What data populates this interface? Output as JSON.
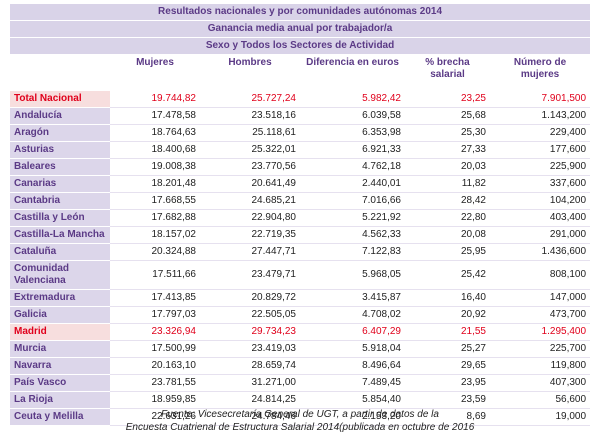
{
  "header": {
    "titles": [
      "Resultados nacionales y por comunidades  autónomas 2014",
      "Ganancia media anual por trabajador/a",
      "Sexo y Todos los Sectores de Actividad"
    ]
  },
  "table": {
    "columns": [
      "Mujeres",
      "Hombres",
      "Diferencia en euros",
      "% brecha salarial",
      "Número de mujeres"
    ],
    "rows": [
      [
        "Total Nacional",
        "19.744,82",
        "25.727,24",
        "5.982,42",
        "23,25",
        "7.901,500"
      ],
      [
        "Andalucía",
        "17.478,58",
        "23.518,16",
        "6.039,58",
        "25,68",
        "1.143,200"
      ],
      [
        "Aragón",
        "18.764,63",
        "25.118,61",
        "6.353,98",
        "25,30",
        "229,400"
      ],
      [
        "Asturias",
        "18.400,68",
        "25.322,01",
        "6.921,33",
        "27,33",
        "177,600"
      ],
      [
        "Baleares",
        "19.008,38",
        "23.770,56",
        "4.762,18",
        "20,03",
        "225,900"
      ],
      [
        "Canarias",
        "18.201,48",
        "20.641,49",
        "2.440,01",
        "11,82",
        "337,600"
      ],
      [
        "Cantabria",
        "17.668,55",
        "24.685,21",
        "7.016,66",
        "28,42",
        "104,200"
      ],
      [
        "Castilla y León",
        "17.682,88",
        "22.904,80",
        "5.221,92",
        "22,80",
        "403,400"
      ],
      [
        "Castilla-La Mancha",
        "18.157,02",
        "22.719,35",
        "4.562,33",
        "20,08",
        "291,000"
      ],
      [
        "Cataluña",
        "20.324,88",
        "27.447,71",
        "7.122,83",
        "25,95",
        "1.436,600"
      ],
      [
        "Comunidad Valenciana",
        "17.511,66",
        "23.479,71",
        "5.968,05",
        "25,42",
        "808,100"
      ],
      [
        "Extremadura",
        "17.413,85",
        "20.829,72",
        "3.415,87",
        "16,40",
        "147,000"
      ],
      [
        "Galicia",
        "17.797,03",
        "22.505,05",
        "4.708,02",
        "20,92",
        "473,700"
      ],
      [
        "Madrid",
        "23.326,94",
        "29.734,23",
        "6.407,29",
        "21,55",
        "1.295,400"
      ],
      [
        "Murcia",
        "17.500,99",
        "23.419,03",
        "5.918,04",
        "25,27",
        "225,700"
      ],
      [
        "Navarra",
        "20.163,10",
        "28.659,74",
        "8.496,64",
        "29,65",
        "119,800"
      ],
      [
        "País Vasco",
        "23.781,55",
        "31.271,00",
        "7.489,45",
        "23,95",
        "407,300"
      ],
      [
        "La Rioja",
        "18.959,85",
        "24.814,25",
        "5.854,40",
        "23,59",
        "56,600"
      ],
      [
        "Ceuta y Melilla",
        "22.631,26",
        "24.784,46",
        "2.153,20",
        "8,69",
        "19,000"
      ]
    ]
  },
  "footer": {
    "lines": [
      "Fuente: Vicesecretaría General de UGT, a partir de datos de la",
      "Encuesta Cuatrienal de Estructura Salarial 2014(publicada en octubre de 2016"
    ]
  }
}
